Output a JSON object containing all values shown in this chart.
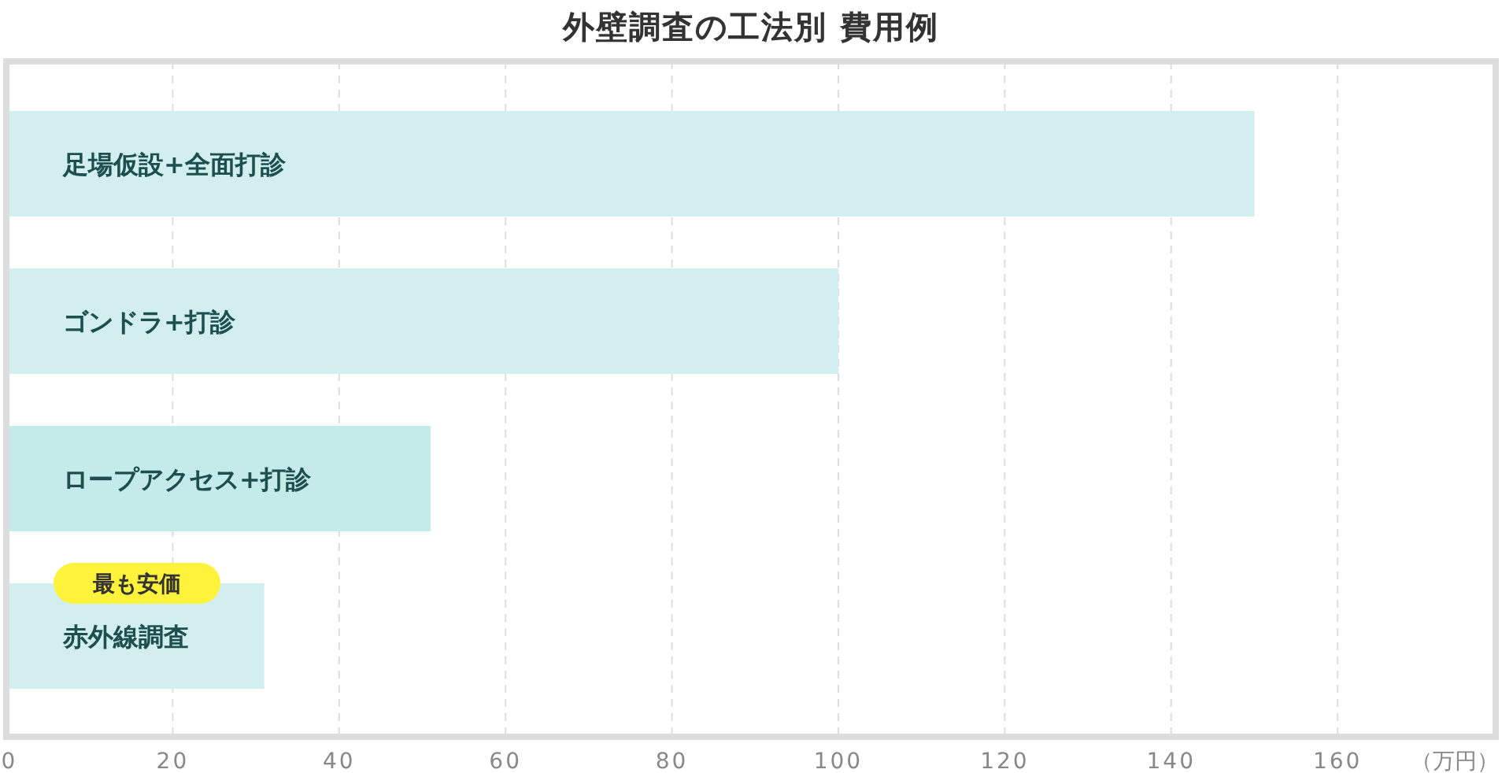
{
  "chart_data": {
    "type": "bar",
    "orientation": "horizontal",
    "title": "外壁調査の工法別 費用例",
    "xlabel": "（万円）",
    "categories": [
      "足場仮設+全面打診",
      "ゴンドラ+打診",
      "ロープアクセス+打診",
      "赤外線調査"
    ],
    "values": [
      150,
      100,
      51,
      31
    ],
    "colors": [
      "#d2eeee",
      "#d2eeee",
      "#c5eaea",
      "#d2eeee"
    ],
    "xlim": [
      0,
      179
    ],
    "xticks": [
      0,
      20,
      40,
      60,
      80,
      100,
      120,
      140,
      160
    ],
    "grid": "x",
    "annotations": [
      "最も安価"
    ]
  }
}
